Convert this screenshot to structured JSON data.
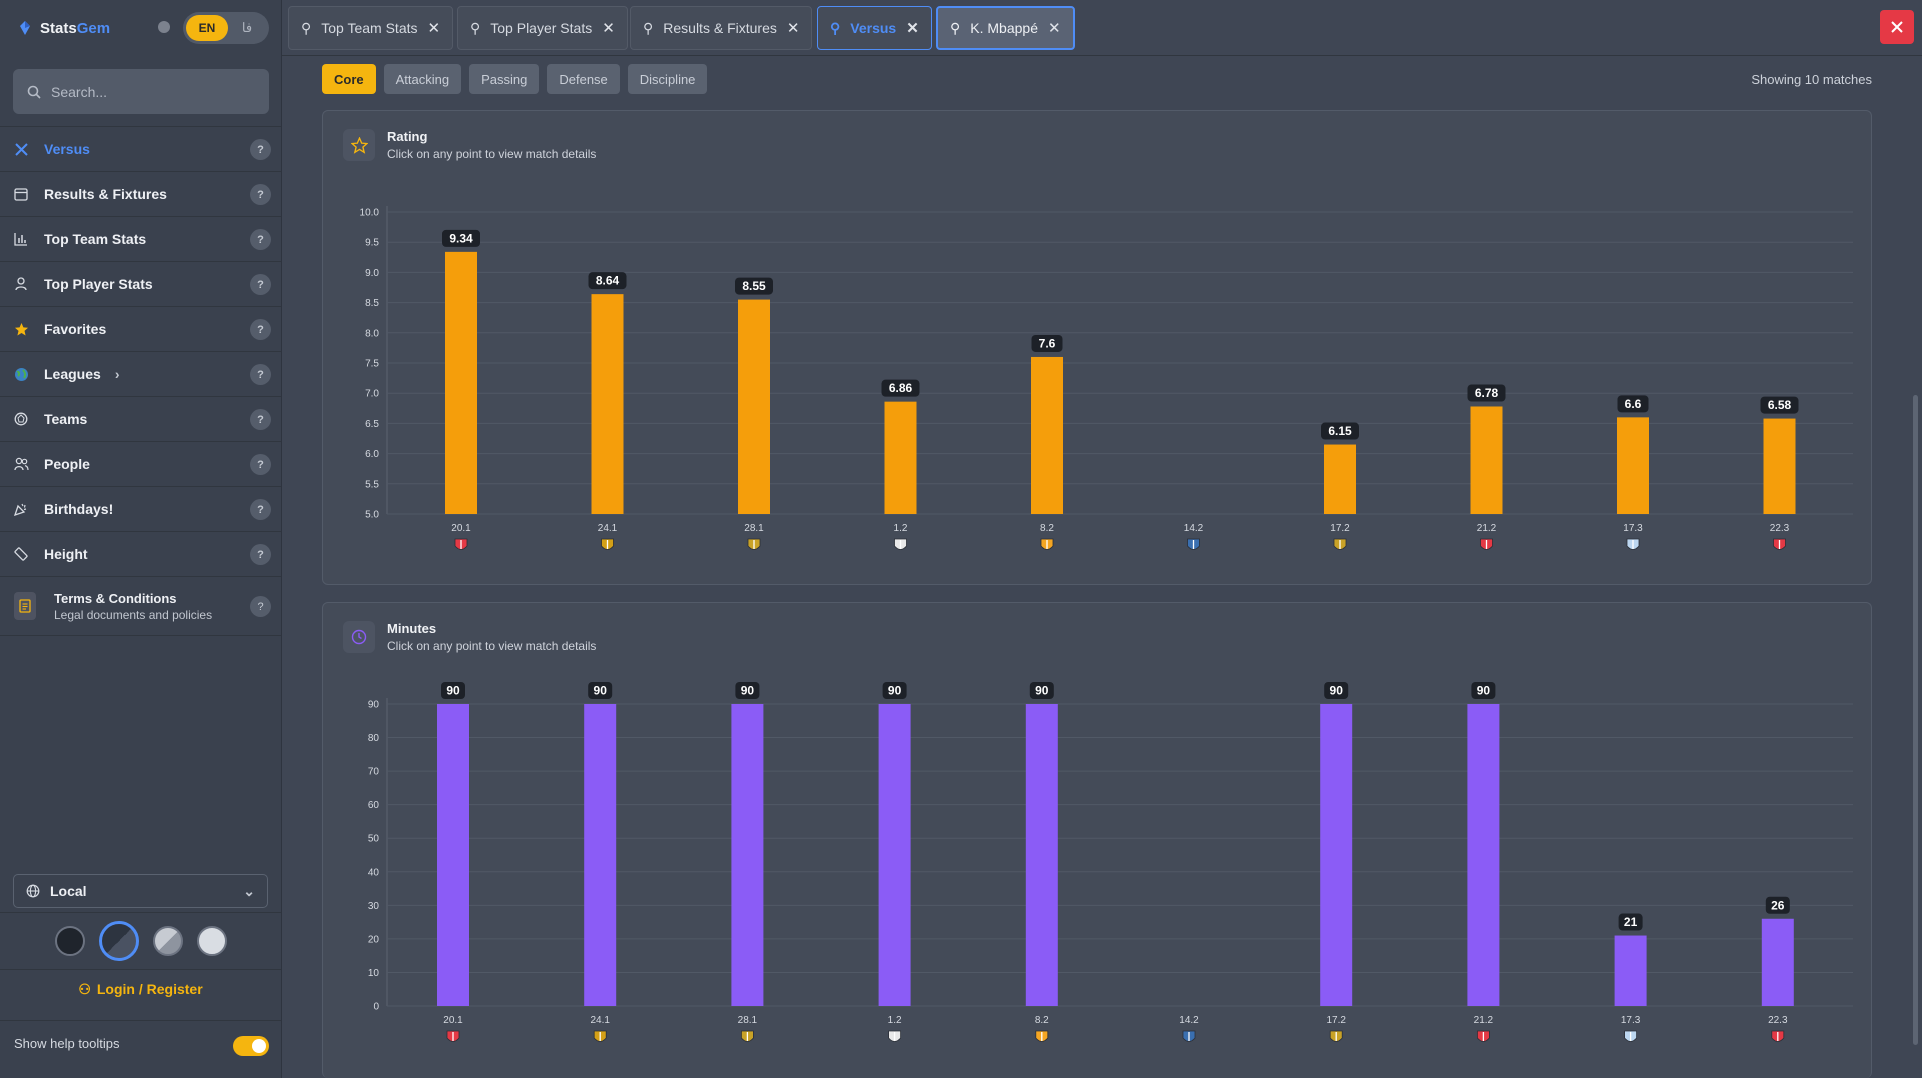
{
  "app": {
    "brand_part1": "Stats",
    "brand_part2": "Gem",
    "lang": "EN",
    "lang_alt": "فا"
  },
  "search": {
    "placeholder": "Search..."
  },
  "sidebar": {
    "items": [
      {
        "label": "Versus",
        "icon": "versus-icon",
        "active": true
      },
      {
        "label": "Results & Fixtures",
        "icon": "calendar-icon"
      },
      {
        "label": "Top Team Stats",
        "icon": "bar-chart-icon"
      },
      {
        "label": "Top Player Stats",
        "icon": "person-icon"
      },
      {
        "label": "Favorites",
        "icon": "star-icon"
      },
      {
        "label": "Leagues",
        "icon": "globe-icon",
        "has_chevron": true
      },
      {
        "label": "Teams",
        "icon": "shield-icon"
      },
      {
        "label": "People",
        "icon": "people-icon"
      },
      {
        "label": "Birthdays!",
        "icon": "party-icon"
      },
      {
        "label": "Height",
        "icon": "ruler-icon"
      }
    ],
    "terms": {
      "title": "Terms & Conditions",
      "subtitle": "Legal documents and policies"
    },
    "timezone": "Local",
    "login": "Login / Register",
    "tips": "Show help tooltips"
  },
  "tabs": [
    {
      "label": "Top Team Stats"
    },
    {
      "label": "Top Player Stats"
    },
    {
      "label": "Results & Fixtures"
    },
    {
      "label": "Versus"
    },
    {
      "label": "K. Mbappé"
    }
  ],
  "categories": [
    "Core",
    "Attacking",
    "Passing",
    "Defense",
    "Discipline"
  ],
  "showing": "Showing 10 matches",
  "panels": {
    "rating": {
      "title": "Rating",
      "subtitle": "Click on any point to view match details"
    },
    "minutes": {
      "title": "Minutes",
      "subtitle": "Click on any point to view match details"
    }
  },
  "colors": {
    "accent": "#f5b50f",
    "rating_bar": "#f59e0b",
    "minutes_bar": "#8b5cf6",
    "link": "#4f8df6"
  },
  "chart_data": [
    {
      "type": "bar",
      "title": "Rating",
      "categories": [
        "20.1",
        "24.1",
        "28.1",
        "1.2",
        "8.2",
        "14.2",
        "17.2",
        "21.2",
        "17.3",
        "22.3"
      ],
      "values": [
        9.34,
        8.64,
        8.55,
        6.86,
        7.6,
        null,
        6.15,
        6.78,
        6.6,
        6.58
      ],
      "ylim": [
        5.0,
        10.0
      ],
      "yticks": [
        "5.0",
        "5.5",
        "6.0",
        "6.5",
        "7.0",
        "7.5",
        "8.0",
        "8.5",
        "9.0",
        "9.5",
        "10.0"
      ],
      "grid": true
    },
    {
      "type": "bar",
      "title": "Minutes",
      "categories": [
        "20.1",
        "24.1",
        "28.1",
        "1.2",
        "8.2",
        "14.2",
        "17.2",
        "21.2",
        "17.3",
        "22.3"
      ],
      "values": [
        90,
        90,
        90,
        90,
        90,
        null,
        90,
        90,
        21,
        26
      ],
      "ylim": [
        0,
        90
      ],
      "yticks": [
        "0",
        "10",
        "20",
        "30",
        "40",
        "50",
        "60",
        "70",
        "80",
        "90"
      ],
      "grid": true
    }
  ]
}
